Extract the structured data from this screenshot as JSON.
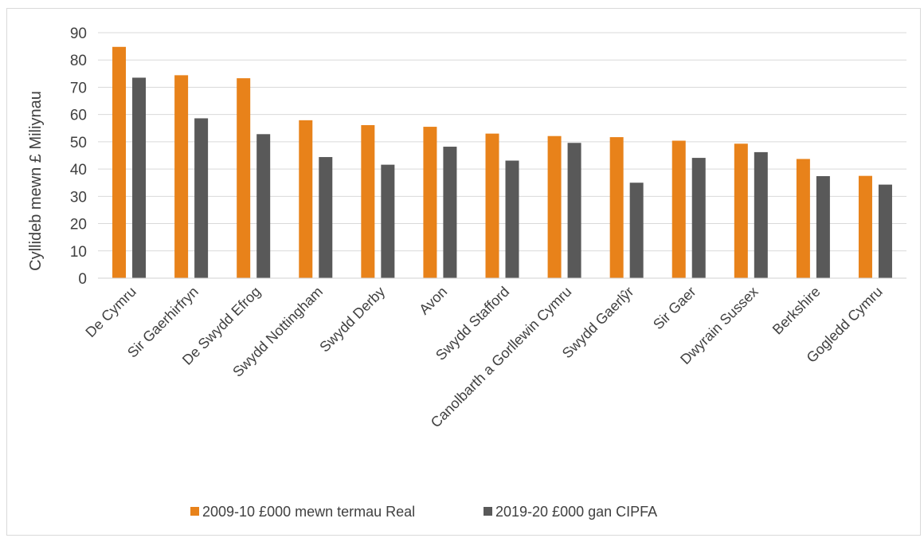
{
  "chart_data": {
    "type": "bar",
    "title": "",
    "xlabel": "",
    "ylabel": "Cyllideb mewn £ Miliynau",
    "ylim": [
      0,
      90
    ],
    "yticks": [
      0,
      10,
      20,
      30,
      40,
      50,
      60,
      70,
      80,
      90
    ],
    "grid": true,
    "legend_position": "bottom",
    "categories": [
      "De Cymru",
      "Sir Gaerhirfryn",
      "De Swydd Efrog",
      "Swydd Nottingham",
      "Swydd Derby",
      "Avon",
      "Swydd Stafford",
      "Canolbarth a Gorllewin Cymru",
      "Swydd Gaerlŷr",
      "Sir Gaer",
      "Dwyrain Sussex",
      "Berkshire",
      "Gogledd Cymru"
    ],
    "series": [
      {
        "name": "2009-10 £000 mewn termau Real",
        "color": "#e8821a",
        "values": [
          84.8,
          74.4,
          73.3,
          57.9,
          56.1,
          55.5,
          53.0,
          52.1,
          51.7,
          50.4,
          49.3,
          43.7,
          37.5
        ]
      },
      {
        "name": "2019-20 £000 gan CIPFA",
        "color": "#595959",
        "values": [
          73.5,
          58.6,
          52.8,
          44.4,
          41.6,
          48.2,
          43.1,
          49.6,
          35.0,
          44.1,
          46.2,
          37.4,
          34.3
        ]
      }
    ]
  }
}
